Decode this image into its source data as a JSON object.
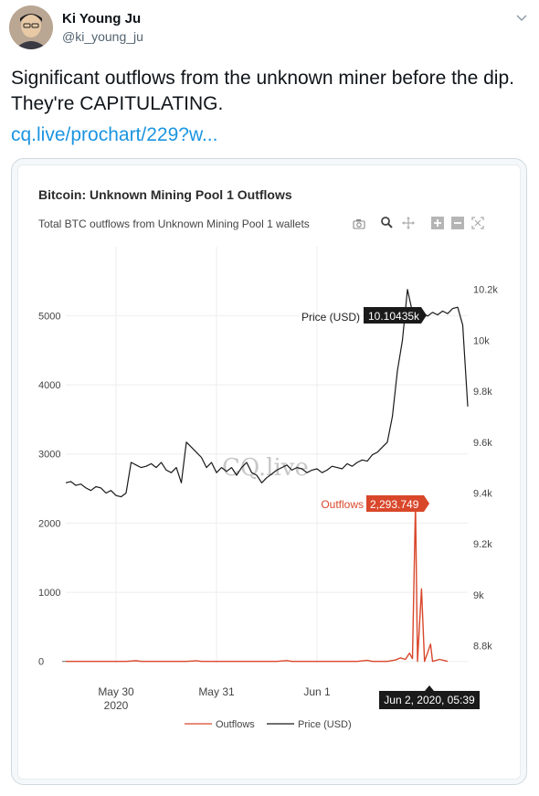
{
  "tweet": {
    "author_name": "Ki Young Ju",
    "author_handle": "@ki_young_ju",
    "text": "Significant outflows from the unknown miner before the dip. They're CAPITULATING.",
    "link_text": "cq.live/prochart/229?w..."
  },
  "chart": {
    "title": "Bitcoin: Unknown Mining Pool 1 Outflows",
    "subtitle": "Total BTC outflows from Unknown Mining Pool 1 wallets",
    "watermark": "CQ.live",
    "hover_price_label": "Price (USD)",
    "hover_price_value": "10.10435k",
    "hover_outflow_label": "Outflows",
    "hover_outflow_value": "2,293.749",
    "hover_x_value": "Jun 2, 2020, 05:39",
    "colors": {
      "outflows": "#d9472b",
      "price": "#1a1a1a",
      "grid": "#eeeeee"
    },
    "toolbar_icons": [
      "camera-icon",
      "zoom-icon",
      "pan-icon",
      "zoom-in-icon",
      "zoom-out-icon",
      "autoscale-icon"
    ]
  },
  "chart_data": {
    "type": "line",
    "title": "Bitcoin: Unknown Mining Pool 1 Outflows",
    "subtitle": "Total BTC outflows from Unknown Mining Pool 1 wallets",
    "x_ticks": [
      {
        "label": "May 30",
        "sublabel": "2020",
        "t": 0.5
      },
      {
        "label": "May 31",
        "sublabel": "",
        "t": 1.5
      },
      {
        "label": "Jun 1",
        "sublabel": "",
        "t": 2.5
      }
    ],
    "x_range": [
      0,
      4.0
    ],
    "y_left": {
      "ticks": [
        "0",
        "1000",
        "2000",
        "3000",
        "4000",
        "5000"
      ],
      "range": [
        -30,
        5600
      ]
    },
    "y_right": {
      "ticks": [
        "8.8k",
        "9k",
        "9.2k",
        "9.4k",
        "9.6k",
        "9.8k",
        "10k",
        "10.2k"
      ],
      "range": [
        8730,
        10260
      ]
    },
    "series": [
      {
        "name": "Outflows",
        "axis": "left",
        "points": [
          [
            0.0,
            0
          ],
          [
            0.6,
            0
          ],
          [
            0.7,
            10
          ],
          [
            0.75,
            0
          ],
          [
            1.0,
            0
          ],
          [
            1.2,
            0
          ],
          [
            1.3,
            8
          ],
          [
            1.35,
            0
          ],
          [
            2.1,
            0
          ],
          [
            2.2,
            12
          ],
          [
            2.25,
            0
          ],
          [
            2.9,
            0
          ],
          [
            3.0,
            15
          ],
          [
            3.05,
            0
          ],
          [
            3.2,
            0
          ],
          [
            3.28,
            20
          ],
          [
            3.33,
            50
          ],
          [
            3.38,
            30
          ],
          [
            3.42,
            120
          ],
          [
            3.45,
            40
          ],
          [
            3.48,
            2293.749
          ],
          [
            3.5,
            0
          ],
          [
            3.54,
            1050
          ],
          [
            3.57,
            0
          ],
          [
            3.63,
            250
          ],
          [
            3.65,
            0
          ],
          [
            3.72,
            30
          ],
          [
            3.8,
            0
          ]
        ]
      },
      {
        "name": "Price (USD)",
        "axis": "right",
        "points": [
          [
            0.0,
            9440
          ],
          [
            0.05,
            9445
          ],
          [
            0.1,
            9430
          ],
          [
            0.15,
            9435
          ],
          [
            0.2,
            9420
          ],
          [
            0.25,
            9410
          ],
          [
            0.3,
            9425
          ],
          [
            0.35,
            9420
          ],
          [
            0.4,
            9400
          ],
          [
            0.45,
            9410
          ],
          [
            0.5,
            9390
          ],
          [
            0.55,
            9385
          ],
          [
            0.6,
            9400
          ],
          [
            0.65,
            9520
          ],
          [
            0.7,
            9510
          ],
          [
            0.75,
            9500
          ],
          [
            0.8,
            9505
          ],
          [
            0.85,
            9515
          ],
          [
            0.9,
            9500
          ],
          [
            0.95,
            9520
          ],
          [
            1.0,
            9490
          ],
          [
            1.05,
            9480
          ],
          [
            1.1,
            9500
          ],
          [
            1.15,
            9440
          ],
          [
            1.2,
            9600
          ],
          [
            1.25,
            9580
          ],
          [
            1.3,
            9560
          ],
          [
            1.35,
            9540
          ],
          [
            1.4,
            9500
          ],
          [
            1.45,
            9520
          ],
          [
            1.5,
            9480
          ],
          [
            1.55,
            9500
          ],
          [
            1.6,
            9485
          ],
          [
            1.65,
            9500
          ],
          [
            1.7,
            9470
          ],
          [
            1.75,
            9500
          ],
          [
            1.8,
            9520
          ],
          [
            1.85,
            9480
          ],
          [
            1.9,
            9470
          ],
          [
            1.95,
            9440
          ],
          [
            2.0,
            9460
          ],
          [
            2.05,
            9475
          ],
          [
            2.1,
            9490
          ],
          [
            2.15,
            9500
          ],
          [
            2.2,
            9510
          ],
          [
            2.25,
            9490
          ],
          [
            2.3,
            9500
          ],
          [
            2.35,
            9495
          ],
          [
            2.4,
            9480
          ],
          [
            2.45,
            9490
          ],
          [
            2.5,
            9495
          ],
          [
            2.55,
            9480
          ],
          [
            2.6,
            9490
          ],
          [
            2.65,
            9505
          ],
          [
            2.7,
            9500
          ],
          [
            2.75,
            9495
          ],
          [
            2.8,
            9515
          ],
          [
            2.85,
            9505
          ],
          [
            2.9,
            9520
          ],
          [
            2.95,
            9530
          ],
          [
            3.0,
            9525
          ],
          [
            3.05,
            9550
          ],
          [
            3.1,
            9560
          ],
          [
            3.15,
            9580
          ],
          [
            3.2,
            9600
          ],
          [
            3.25,
            9700
          ],
          [
            3.3,
            9880
          ],
          [
            3.35,
            10000
          ],
          [
            3.4,
            10200
          ],
          [
            3.45,
            10110
          ],
          [
            3.5,
            10100
          ],
          [
            3.55,
            10110
          ],
          [
            3.6,
            10095
          ],
          [
            3.65,
            10110
          ],
          [
            3.7,
            10100
          ],
          [
            3.75,
            10115
          ],
          [
            3.8,
            10105
          ],
          [
            3.85,
            10125
          ],
          [
            3.9,
            10130
          ],
          [
            3.95,
            10060
          ],
          [
            4.0,
            9740
          ]
        ]
      }
    ],
    "legend_position": "bottom-center",
    "grid": true
  }
}
